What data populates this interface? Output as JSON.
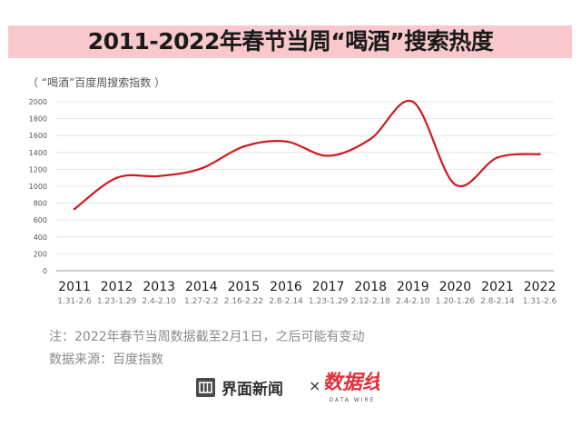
{
  "header": {
    "title": "2011-2022年春节当周“喝酒”搜索热度"
  },
  "unit_label": "（ “喝酒”百度周搜索指数 ）",
  "notes": {
    "note": "注：2022年春节当周数据截至2月1日，之后可能有变动",
    "source": "数据来源：百度指数"
  },
  "footer": {
    "brand_name": "界面新闻",
    "times": "×",
    "partner_brand": "数据线",
    "partner_sub": "DATA WIRE"
  },
  "colors": {
    "line": "#d0191f",
    "title_band": "#f8c8cc",
    "grid": "#e6e6e6"
  },
  "chart_data": {
    "type": "line",
    "title": "2011-2022年春节当周“喝酒”搜索热度",
    "ylabel": "（ “喝酒”百度周搜索指数 ）",
    "xlabel": "",
    "ylim": [
      0,
      2000
    ],
    "yticks": [
      0,
      200,
      400,
      600,
      800,
      1000,
      1200,
      1400,
      1600,
      1800,
      2000
    ],
    "grid": true,
    "categories": [
      "2011",
      "2012",
      "2013",
      "2014",
      "2015",
      "2016",
      "2017",
      "2018",
      "2019",
      "2020",
      "2021",
      "2022"
    ],
    "sublabels": [
      "1.31-2.6",
      "1.23-1.29",
      "2.4-2.10",
      "1.27-2.2",
      "2.16-2.22",
      "2.8-2.14",
      "1.23-1.29",
      "2.12-2.18",
      "2.4-2.10",
      "1.20-1.26",
      "2.8-2.14",
      "1.31-2.6"
    ],
    "values": [
      730,
      1100,
      1120,
      1210,
      1470,
      1530,
      1360,
      1560,
      2000,
      1020,
      1340,
      1380
    ]
  }
}
